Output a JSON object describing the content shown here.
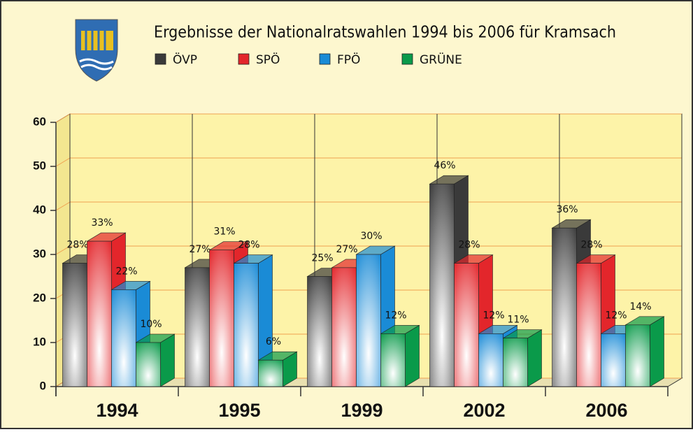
{
  "chart_data": {
    "type": "bar3d",
    "title": "Ergebnisse der Nationalratswahlen 1994 bis 2006 für Kramsach",
    "categories": [
      "1994",
      "1995",
      "1999",
      "2002",
      "2006"
    ],
    "series": [
      {
        "name": "ÖVP",
        "color": "#3a3a3a",
        "values": [
          28,
          27,
          25,
          46,
          36
        ],
        "value_labels": [
          "28%",
          "27%",
          "25%",
          "46%",
          "36%"
        ]
      },
      {
        "name": "SPÖ",
        "color": "#e3262b",
        "values": [
          33,
          31,
          27,
          28,
          28
        ],
        "value_labels": [
          "33%",
          "31%",
          "27%",
          "28%",
          "28%"
        ]
      },
      {
        "name": "FPÖ",
        "color": "#1a8bd6",
        "values": [
          22,
          28,
          30,
          12,
          12
        ],
        "value_labels": [
          "22%",
          "28%",
          "30%",
          "12%",
          "12%"
        ]
      },
      {
        "name": "GRÜNE",
        "color": "#0a9a4a",
        "values": [
          10,
          6,
          12,
          11,
          14
        ],
        "value_labels": [
          "10%",
          "6%",
          "12%",
          "11%",
          "14%"
        ]
      }
    ],
    "ylim": [
      0,
      60
    ],
    "yticks": [
      0,
      10,
      20,
      30,
      40,
      50,
      60
    ],
    "grid": true
  }
}
